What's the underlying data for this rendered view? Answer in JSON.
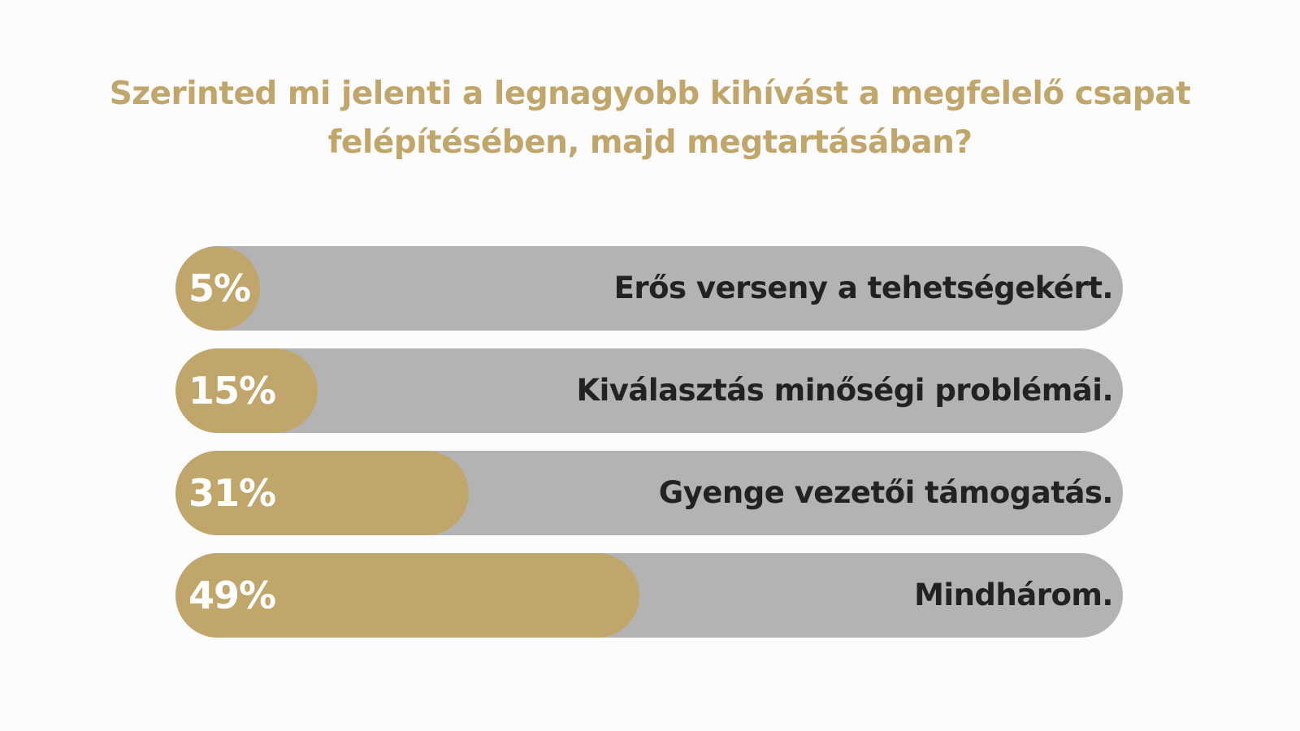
{
  "colors": {
    "accent": "#c1a66c",
    "track": "#b3b3b3",
    "label_text": "#222222",
    "percent_text": "#ffffff",
    "background": "#fcfcfc"
  },
  "chart_data": {
    "type": "bar",
    "orientation": "horizontal",
    "title": "Szerinted mi jelenti a legnagyobb kihívást a megfelelő csapat felépítésében, majd megtartásában?",
    "categories": [
      "Erős verseny a tehetségekért.",
      "Kiválasztás minőségi problémái.",
      "Gyenge vezetői támogatás.",
      "Mindhárom."
    ],
    "values": [
      5,
      15,
      31,
      49
    ],
    "value_labels": [
      "5%",
      "15%",
      "31%",
      "49%"
    ],
    "unit": "%",
    "xlim": [
      0,
      100
    ],
    "grid": false,
    "legend": "none"
  }
}
